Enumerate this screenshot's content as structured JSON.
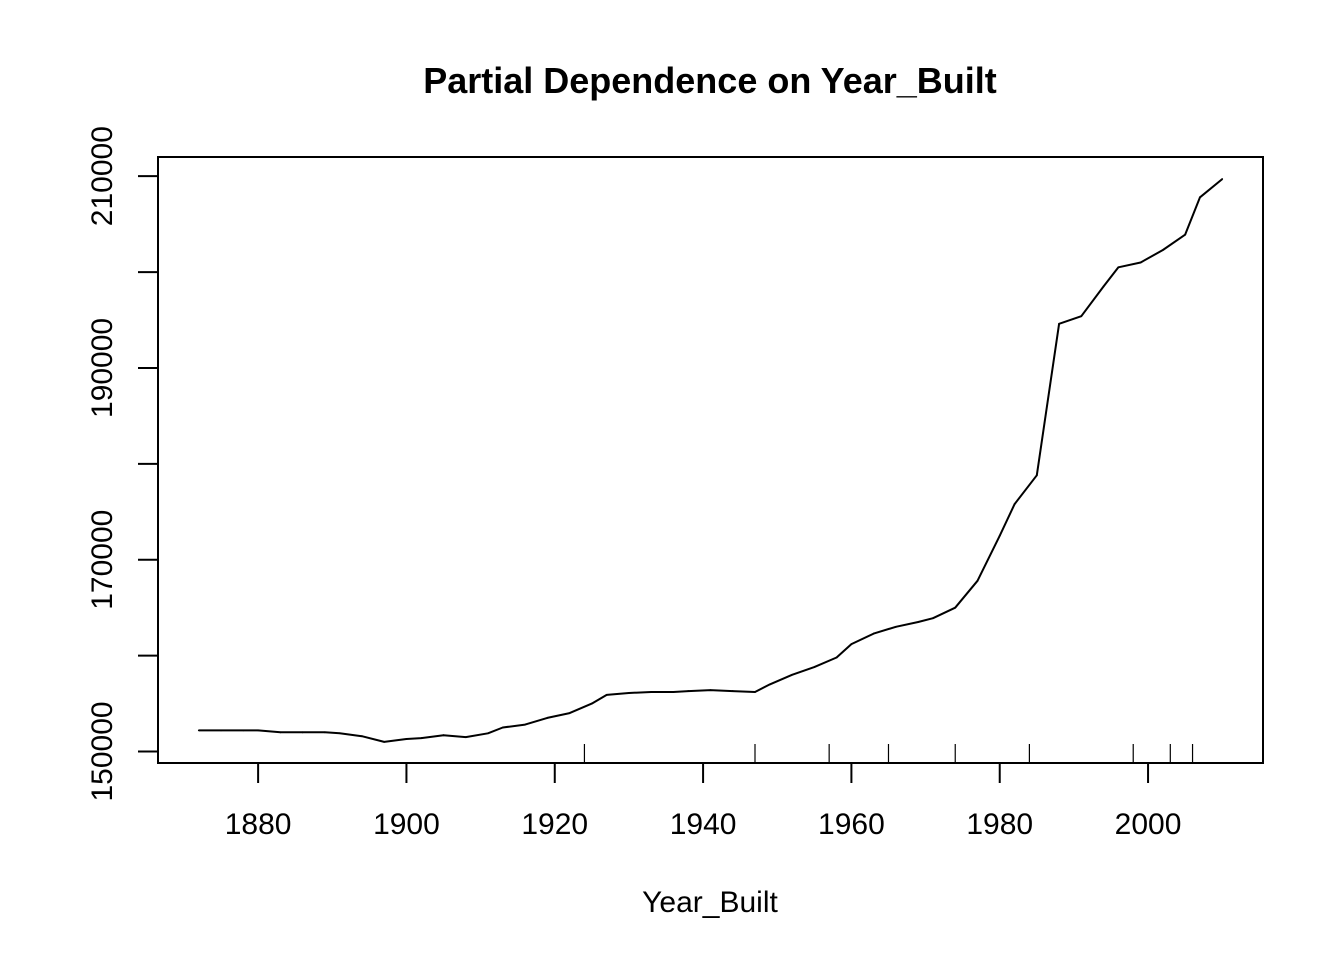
{
  "chart_data": {
    "type": "line",
    "title": "Partial Dependence on Year_Built",
    "xlabel": "Year_Built",
    "ylabel": "",
    "xlim": [
      1866.5,
      2015.5
    ],
    "ylim": [
      148800,
      212000
    ],
    "x_ticks": [
      1880,
      1900,
      1920,
      1940,
      1960,
      1980,
      2000
    ],
    "x_tick_labels": [
      "1880",
      "1900",
      "1920",
      "1940",
      "1960",
      "1980",
      "2000"
    ],
    "y_ticks": [
      150000,
      160000,
      170000,
      180000,
      190000,
      200000,
      210000
    ],
    "y_tick_labels": [
      "150000",
      "",
      "170000",
      "",
      "190000",
      "",
      "210000"
    ],
    "grid": false,
    "legend": "none",
    "series": [
      {
        "x": [
          1872,
          1875,
          1878,
          1880,
          1883,
          1886,
          1889,
          1891,
          1894,
          1897,
          1900,
          1902,
          1905,
          1908,
          1911,
          1913,
          1916,
          1919,
          1922,
          1925,
          1927,
          1930,
          1933,
          1936,
          1938,
          1941,
          1944,
          1947,
          1949,
          1952,
          1955,
          1958,
          1960,
          1963,
          1966,
          1969,
          1971,
          1974,
          1977,
          1980,
          1982,
          1985,
          1988,
          1991,
          1994,
          1996,
          1999,
          2002,
          2005,
          2007,
          2010
        ],
        "y": [
          152200,
          152200,
          152200,
          152200,
          152000,
          152000,
          152000,
          151900,
          151600,
          151000,
          151300,
          151400,
          151700,
          151500,
          151900,
          152500,
          152800,
          153500,
          154000,
          155000,
          155900,
          156100,
          156200,
          156200,
          156300,
          156400,
          156300,
          156200,
          157000,
          158000,
          158800,
          159800,
          161200,
          162300,
          163000,
          163500,
          163900,
          165000,
          167800,
          172500,
          175800,
          178800,
          194600,
          195400,
          198500,
          200500,
          201000,
          202300,
          203900,
          207800,
          209700
        ]
      }
    ],
    "rug": [
      1924,
      1947,
      1957,
      1965,
      1974,
      1984,
      1998,
      2003,
      2006
    ]
  }
}
